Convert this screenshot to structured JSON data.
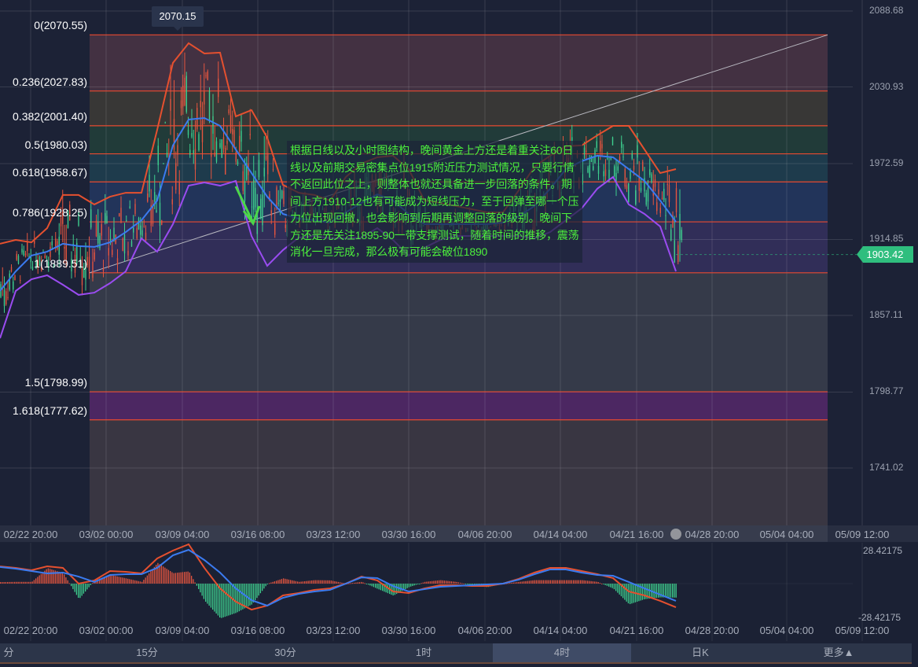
{
  "chart_data": [
    {
      "type": "candlestick",
      "title": "",
      "x_range": [
        "02/19 22:00",
        "04/23 20:00"
      ],
      "ylim": [
        1716,
        2095
      ],
      "y_ticks": [
        "2088.68",
        "2030.93",
        "1972.59",
        "1914.85",
        "1857.11",
        "1798.77",
        "1741.02"
      ],
      "x_ticks": [
        "02/22 20:00",
        "03/02 00:00",
        "03/09 04:00",
        "03/16 08:00",
        "03/23 12:00",
        "03/30 16:00",
        "04/06 20:00",
        "04/14 04:00",
        "04/21 16:00",
        "04/28 20:00",
        "05/04 04:00",
        "05/09 12:00"
      ],
      "grid": true,
      "high_marker": "2070.15",
      "last_price": "1903.42",
      "fibonacci": [
        {
          "ratio": "0",
          "price": 2070.55,
          "label": "0(2070.55)",
          "band_color": "#4a3444"
        },
        {
          "ratio": "0.236",
          "price": 2027.83,
          "label": "0.236(2027.83)",
          "band_color": "#3d3b36"
        },
        {
          "ratio": "0.382",
          "price": 2001.4,
          "label": "0.382(2001.40)",
          "band_color": "#22403a"
        },
        {
          "ratio": "0.5",
          "price": 1980.03,
          "label": "0.5(1980.03)",
          "band_color": "#1e4050"
        },
        {
          "ratio": "0.618",
          "price": 1958.67,
          "label": "0.618(1958.67)",
          "band_color": "#233760"
        },
        {
          "ratio": "0.786",
          "price": 1928.25,
          "label": "0.786(1928.25)",
          "band_color": "#35305e"
        },
        {
          "ratio": "1",
          "price": 1889.51,
          "label": "1(1889.51)",
          "band_color": "#3a3e4c"
        },
        {
          "ratio": "1.5",
          "price": 1798.99,
          "label": "1.5(1798.99)",
          "band_color": "#55286a"
        },
        {
          "ratio": "1.618",
          "price": 1777.62,
          "label": "1.618(1777.62)",
          "band_color": "#3e3a44"
        }
      ],
      "series": [
        {
          "color": "#e5502f",
          "values": [
            1911.6,
            1914.5,
            1912.7,
            1923.5,
            1948.7,
            1948.7,
            1941.5,
            1947.4,
            1950.4,
            1950.4,
            1998.3,
            2049.2,
            2064.2,
            2056.4,
            2057.0,
            2008.5,
            2013.3,
            1992.3,
            1956.4,
            1950.4,
            1948.7,
            1944.5,
            1962.4,
            1972.6,
            1977.4,
            1978.6,
            1968.4,
            1944.5,
            1942.7,
            1940.3,
            1937.9,
            1935.5,
            1935.5,
            1952.2,
            1970.2,
            1978.6,
            1985.8,
            1986.4,
            1994.1,
            2001.3,
            2001.3,
            1983.3,
            1965.4,
            1968.4
          ]
        },
        {
          "color": "#3b7bf0",
          "values": [
            1875.7,
            1890.6,
            1902.6,
            1905.6,
            1911.6,
            1909.8,
            1909.2,
            1912.7,
            1920.5,
            1929.5,
            1944.5,
            1986.4,
            2006.1,
            2007.3,
            2001.3,
            1983.3,
            1965.4,
            1947.4,
            1934.3,
            1930.7,
            1929.5,
            1927.7,
            1935.5,
            1942.7,
            1949.2,
            1944.5,
            1934.3,
            1926.5,
            1926.5,
            1926.5,
            1926.5,
            1926.5,
            1927.7,
            1932.5,
            1940.3,
            1953.5,
            1968.4,
            1974.4,
            1978.6,
            1977.4,
            1968.4,
            1959.4,
            1944.5,
            1928.3
          ]
        },
        {
          "color": "#9a4cf0",
          "values": [
            1839.7,
            1875.7,
            1884.6,
            1887.6,
            1880.4,
            1872.7,
            1874.4,
            1881.6,
            1890.6,
            1915.7,
            1905.6,
            1926.5,
            1955.8,
            1958.2,
            1955.8,
            1959.4,
            1917.5,
            1894.8,
            1906.8,
            1916.3,
            1917.5,
            1915.7,
            1915.7,
            1916.3,
            1923.5,
            1914.5,
            1902.6,
            1908.6,
            1914.5,
            1917.5,
            1917.5,
            1917.5,
            1917.5,
            1917.5,
            1915.7,
            1920.5,
            1929.5,
            1938.5,
            1953.5,
            1962.4,
            1941.5,
            1934.3,
            1924.7,
            1890.6
          ]
        }
      ],
      "candle_colors": {
        "up": "#e5553f",
        "down": "#3ecf8e"
      }
    },
    {
      "type": "macd",
      "x_range": [
        "02/19 22:00",
        "04/23 20:00"
      ],
      "y_ticks": [
        "28.42175",
        "-28.42175"
      ],
      "x_ticks": [
        "02/22 20:00",
        "03/02 00:00",
        "03/09 04:00",
        "03/16 08:00",
        "03/23 12:00",
        "03/30 16:00",
        "04/06 20:00",
        "04/14 04:00",
        "04/21 16:00",
        "04/28 20:00",
        "05/04 04:00",
        "05/09 12:00"
      ],
      "series": [
        {
          "color": "#e5502f",
          "values": [
            15.2,
            13.9,
            11.8,
            15.2,
            13.9,
            0,
            2.8,
            11.1,
            10.4,
            9.0,
            22.2,
            29.1,
            34.7,
            13.9,
            -4.2,
            -15.9,
            -22.9,
            -19.4,
            -10.4,
            -8.3,
            -5.5,
            -4.2,
            0,
            6.2,
            2.8,
            -6.9,
            -8.3,
            -4.2,
            -1.4,
            -1.4,
            -2.1,
            -2.1,
            0,
            4.2,
            9.7,
            13.9,
            13.9,
            11.1,
            8.3,
            4.9,
            -6.9,
            -10.4,
            -15.2,
            -20.8
          ]
        },
        {
          "color": "#3b7bf0",
          "values": [
            14.6,
            13.2,
            11.1,
            9.0,
            9.7,
            6.2,
            1.4,
            7.6,
            8.3,
            8.3,
            13.9,
            24.9,
            29.8,
            20.8,
            9.7,
            -4.2,
            -14.6,
            -19.4,
            -12.5,
            -9.0,
            -6.9,
            -5.5,
            0,
            5.5,
            4.9,
            -2.1,
            -6.9,
            -4.9,
            -2.8,
            -2.1,
            -1.4,
            -0.7,
            0,
            3.5,
            8.3,
            12.5,
            12.5,
            9.7,
            7.6,
            6.9,
            1.4,
            -4.2,
            -9.7,
            -15.2
          ]
        }
      ],
      "histogram_colors": {
        "positive": "#e5553f",
        "negative": "#3ecf8e"
      }
    }
  ],
  "annotation": {
    "text": "根据日线以及小时图结构，晚间黄金上方还是着重关注60日线以及前期交易密集点位1915附近压力测试情况，只要行情不返回此位之上，则整体也就还具备进一步回落的条件。期间上方1910-12也有可能成为短线压力，至于回弹至哪一个压力位出现回撤，也会影响到后期再调整回落的级别。晚间下方还是先关注1895-90一带支撑测试，随着时间的推移，震荡消化一旦完成，那么极有可能会破位1890",
    "color": "#4cf03c"
  },
  "timeframe_tabs": [
    {
      "label": "分",
      "active": false
    },
    {
      "label": "15分",
      "active": false
    },
    {
      "label": "30分",
      "active": false
    },
    {
      "label": "1时",
      "active": false
    },
    {
      "label": "4时",
      "active": true
    },
    {
      "label": "日K",
      "active": false
    },
    {
      "label": "更多▲",
      "active": false
    }
  ]
}
